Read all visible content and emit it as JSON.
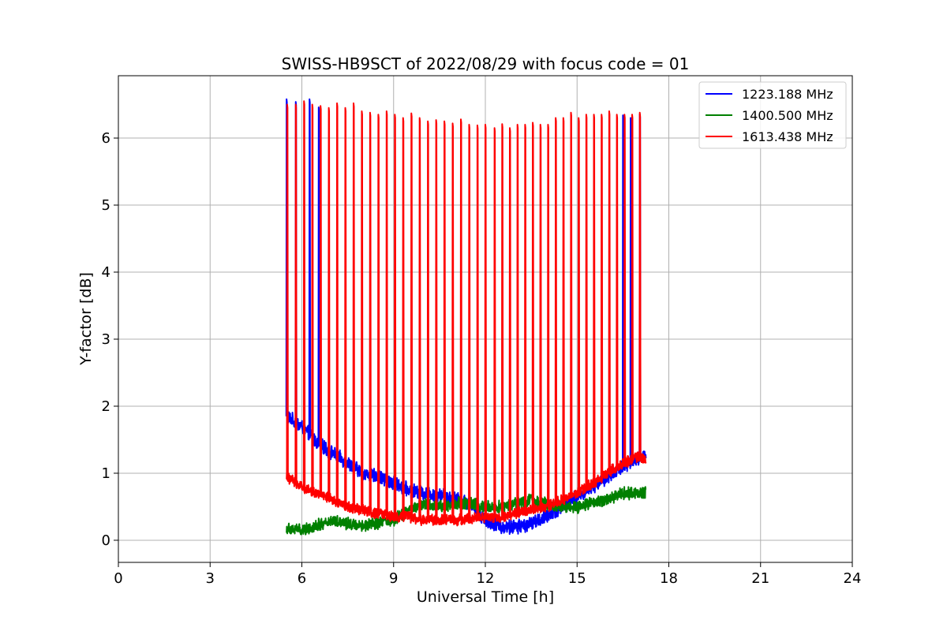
{
  "chart_data": {
    "type": "line",
    "title": "SWISS-HB9SCT of 2022/08/29 with focus code = 01",
    "xlabel": "Universal Time [h]",
    "ylabel": "Y-factor [dB]",
    "xlim": [
      0,
      24
    ],
    "ylim": [
      -0.33,
      6.93
    ],
    "xticks": [
      0,
      3,
      6,
      9,
      12,
      15,
      18,
      21,
      24
    ],
    "yticks": [
      0,
      1,
      2,
      3,
      4,
      5,
      6
    ],
    "grid": true,
    "legend_position": "top-right",
    "series": [
      {
        "name": "1223.188 MHz",
        "color": "#0000ff",
        "baseline_x": [
          5.5,
          6.0,
          6.5,
          7.0,
          7.5,
          8.0,
          8.5,
          9.0,
          9.5,
          10.0,
          10.5,
          11.0,
          11.5,
          12.0,
          12.5,
          13.0,
          13.5,
          14.0,
          14.5,
          15.0,
          15.5,
          16.0,
          16.5,
          17.0,
          17.25
        ],
        "baseline_y": [
          1.85,
          1.7,
          1.45,
          1.3,
          1.15,
          1.0,
          0.95,
          0.85,
          0.75,
          0.7,
          0.68,
          0.62,
          0.55,
          0.3,
          0.2,
          0.2,
          0.25,
          0.35,
          0.5,
          0.65,
          0.8,
          0.95,
          1.1,
          1.2,
          1.3
        ],
        "noise": 0.09,
        "peaks_x": [
          5.5,
          5.8,
          6.25,
          6.55,
          16.5,
          16.75,
          17.05
        ],
        "peaks_y": [
          6.58,
          6.54,
          6.58,
          6.46,
          6.34,
          6.3,
          6.36
        ]
      },
      {
        "name": "1400.500 MHz",
        "color": "#008000",
        "baseline_x": [
          5.5,
          6.0,
          6.5,
          7.0,
          7.5,
          8.0,
          8.5,
          9.0,
          9.5,
          10.0,
          10.5,
          11.0,
          11.5,
          12.0,
          12.5,
          13.0,
          13.5,
          14.0,
          14.5,
          15.0,
          15.5,
          16.0,
          16.5,
          17.0,
          17.25
        ],
        "baseline_y": [
          0.18,
          0.15,
          0.22,
          0.3,
          0.25,
          0.22,
          0.25,
          0.3,
          0.45,
          0.55,
          0.5,
          0.55,
          0.55,
          0.5,
          0.5,
          0.55,
          0.6,
          0.55,
          0.5,
          0.5,
          0.55,
          0.6,
          0.7,
          0.7,
          0.72
        ],
        "noise": 0.08,
        "peaks_x": [],
        "peaks_y": []
      },
      {
        "name": "1613.438 MHz",
        "color": "#ff0000",
        "baseline_x": [
          5.5,
          6.0,
          6.5,
          7.0,
          7.5,
          8.0,
          8.5,
          9.0,
          9.5,
          10.0,
          10.5,
          11.0,
          11.5,
          12.0,
          12.5,
          13.0,
          13.5,
          14.0,
          14.5,
          15.0,
          15.5,
          16.0,
          16.5,
          17.0,
          17.25
        ],
        "baseline_y": [
          0.95,
          0.8,
          0.7,
          0.6,
          0.5,
          0.45,
          0.4,
          0.35,
          0.35,
          0.3,
          0.3,
          0.3,
          0.32,
          0.35,
          0.35,
          0.4,
          0.45,
          0.5,
          0.6,
          0.7,
          0.85,
          1.0,
          1.15,
          1.25,
          1.2
        ],
        "noise": 0.07,
        "peaks_x": [
          5.52,
          5.8,
          6.07,
          6.34,
          6.61,
          6.88,
          7.15,
          7.42,
          7.69,
          7.96,
          8.23,
          8.5,
          8.77,
          9.04,
          9.31,
          9.58,
          9.85,
          10.12,
          10.39,
          10.66,
          10.93,
          11.2,
          11.47,
          11.74,
          12.0,
          12.3,
          12.55,
          12.8,
          13.05,
          13.3,
          13.55,
          13.8,
          14.05,
          14.3,
          14.55,
          14.8,
          15.05,
          15.3,
          15.55,
          15.8,
          16.05,
          16.3,
          16.55,
          16.8,
          17.05
        ],
        "peaks_y": [
          6.5,
          6.5,
          6.55,
          6.5,
          6.48,
          6.45,
          6.52,
          6.45,
          6.52,
          6.4,
          6.38,
          6.35,
          6.4,
          6.35,
          6.3,
          6.37,
          6.3,
          6.25,
          6.27,
          6.25,
          6.22,
          6.28,
          6.2,
          6.19,
          6.2,
          6.15,
          6.21,
          6.15,
          6.2,
          6.2,
          6.23,
          6.2,
          6.2,
          6.3,
          6.3,
          6.38,
          6.3,
          6.35,
          6.35,
          6.35,
          6.4,
          6.35,
          6.35,
          6.35,
          6.38
        ]
      }
    ]
  }
}
